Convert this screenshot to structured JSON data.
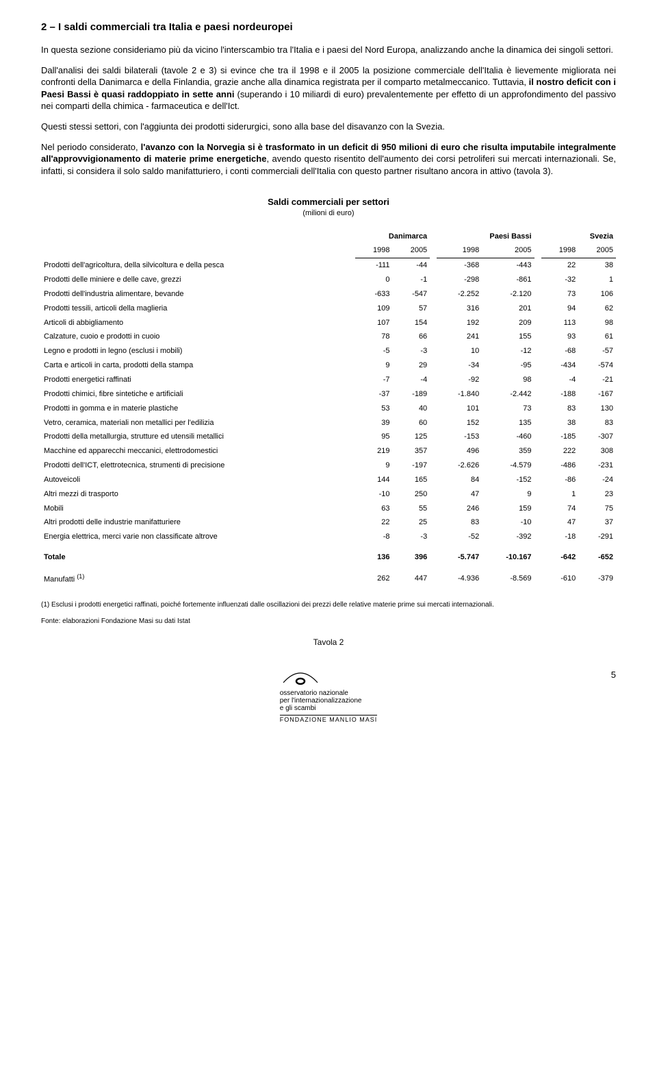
{
  "section": {
    "title": "2 – I saldi commerciali tra Italia e paesi nordeuropei",
    "para1": "In questa sezione consideriamo più da vicino l'interscambio tra l'Italia e i paesi del Nord Europa, analizzando anche la dinamica dei singoli settori.",
    "para2_pre": "Dall'analisi dei saldi bilaterali (tavole 2 e 3) si evince che tra il 1998 e il 2005 la posizione commerciale dell'Italia è lievemente migliorata nei confronti della Danimarca e della Finlandia, grazie anche alla dinamica registrata per il comparto metalmeccanico. Tuttavia, ",
    "para2_bold": "il nostro deficit con i Paesi Bassi è quasi raddoppiato in sette anni",
    "para2_post": " (superando i 10 miliardi di euro) prevalentemente per effetto di un approfondimento del passivo nei comparti della chimica - farmaceutica e dell'Ict.",
    "para3": "Questi stessi settori, con l'aggiunta dei prodotti siderurgici, sono alla base del disavanzo con la Svezia.",
    "para4_pre": "Nel periodo considerato, ",
    "para4_bold": "l'avanzo con la Norvegia si è trasformato in un deficit di 950 milioni di euro che risulta imputabile integralmente all'approvvigionamento di materie prime energetiche",
    "para4_post": ", avendo questo risentito dell'aumento dei corsi petroliferi sui mercati internazionali. Se, infatti, si considera il solo saldo manifatturiero, i conti commerciali dell'Italia con questo partner risultano ancora in attivo (tavola 3)."
  },
  "table": {
    "title": "Saldi commerciali per settori",
    "subtitle": "(milioni di euro)",
    "countries": [
      "Danimarca",
      "Paesi Bassi",
      "Svezia"
    ],
    "years": [
      "1998",
      "2005",
      "1998",
      "2005",
      "1998",
      "2005"
    ],
    "rows": [
      {
        "label": "Prodotti dell'agricoltura, della silvicoltura e della pesca",
        "v": [
          "-111",
          "-44",
          "-368",
          "-443",
          "22",
          "38"
        ]
      },
      {
        "label": "Prodotti delle miniere e delle cave, grezzi",
        "v": [
          "0",
          "-1",
          "-298",
          "-861",
          "-32",
          "1"
        ]
      },
      {
        "label": "Prodotti dell'industria alimentare, bevande",
        "v": [
          "-633",
          "-547",
          "-2.252",
          "-2.120",
          "73",
          "106"
        ]
      },
      {
        "label": "Prodotti tessili, articoli della maglieria",
        "v": [
          "109",
          "57",
          "316",
          "201",
          "94",
          "62"
        ]
      },
      {
        "label": "Articoli di abbigliamento",
        "v": [
          "107",
          "154",
          "192",
          "209",
          "113",
          "98"
        ]
      },
      {
        "label": "Calzature, cuoio e prodotti in cuoio",
        "v": [
          "78",
          "66",
          "241",
          "155",
          "93",
          "61"
        ]
      },
      {
        "label": "Legno e prodotti in legno (esclusi i mobili)",
        "v": [
          "-5",
          "-3",
          "10",
          "-12",
          "-68",
          "-57"
        ]
      },
      {
        "label": "Carta e articoli in carta, prodotti della stampa",
        "v": [
          "9",
          "29",
          "-34",
          "-95",
          "-434",
          "-574"
        ]
      },
      {
        "label": "Prodotti energetici raffinati",
        "v": [
          "-7",
          "-4",
          "-92",
          "98",
          "-4",
          "-21"
        ]
      },
      {
        "label": "Prodotti chimici, fibre sintetiche e artificiali",
        "v": [
          "-37",
          "-189",
          "-1.840",
          "-2.442",
          "-188",
          "-167"
        ]
      },
      {
        "label": "Prodotti in gomma e in materie plastiche",
        "v": [
          "53",
          "40",
          "101",
          "73",
          "83",
          "130"
        ]
      },
      {
        "label": "Vetro, ceramica, materiali non metallici per l'edilizia",
        "v": [
          "39",
          "60",
          "152",
          "135",
          "38",
          "83"
        ]
      },
      {
        "label": "Prodotti della metallurgia, strutture ed utensili metallici",
        "v": [
          "95",
          "125",
          "-153",
          "-460",
          "-185",
          "-307"
        ]
      },
      {
        "label": "Macchine ed apparecchi meccanici, elettrodomestici",
        "v": [
          "219",
          "357",
          "496",
          "359",
          "222",
          "308"
        ]
      },
      {
        "label": "Prodotti dell'ICT, elettrotecnica, strumenti di precisione",
        "v": [
          "9",
          "-197",
          "-2.626",
          "-4.579",
          "-486",
          "-231"
        ]
      },
      {
        "label": "Autoveicoli",
        "v": [
          "144",
          "165",
          "84",
          "-152",
          "-86",
          "-24"
        ]
      },
      {
        "label": "Altri mezzi di trasporto",
        "v": [
          "-10",
          "250",
          "47",
          "9",
          "1",
          "23"
        ]
      },
      {
        "label": "Mobili",
        "v": [
          "63",
          "55",
          "246",
          "159",
          "74",
          "75"
        ]
      },
      {
        "label": "Altri prodotti delle industrie manifatturiere",
        "v": [
          "22",
          "25",
          "83",
          "-10",
          "47",
          "37"
        ]
      },
      {
        "label": "Energia elettrica, merci varie non classificate altrove",
        "v": [
          "-8",
          "-3",
          "-52",
          "-392",
          "-18",
          "-291"
        ]
      }
    ],
    "total": {
      "label": "Totale",
      "v": [
        "136",
        "396",
        "-5.747",
        "-10.167",
        "-642",
        "-652"
      ]
    },
    "manufatti": {
      "label": "Manufatti ",
      "sup": "(1)",
      "v": [
        "262",
        "447",
        "-4.936",
        "-8.569",
        "-610",
        "-379"
      ]
    },
    "footnote": "(1) Esclusi i prodotti energetici raffinati, poiché fortemente influenzati dalle oscillazioni dei prezzi delle relative materie prime sui mercati internazionali.",
    "source": "Fonte: elaborazioni Fondazione Masi su dati Istat",
    "tavola": "Tavola 2"
  },
  "footer": {
    "page": "5",
    "logo_line1": "osservatorio nazionale",
    "logo_line2": "per l'internazionalizzazione",
    "logo_line3": "e gli scambi",
    "fondazione": "FONDAZIONE MANLIO MASI"
  }
}
